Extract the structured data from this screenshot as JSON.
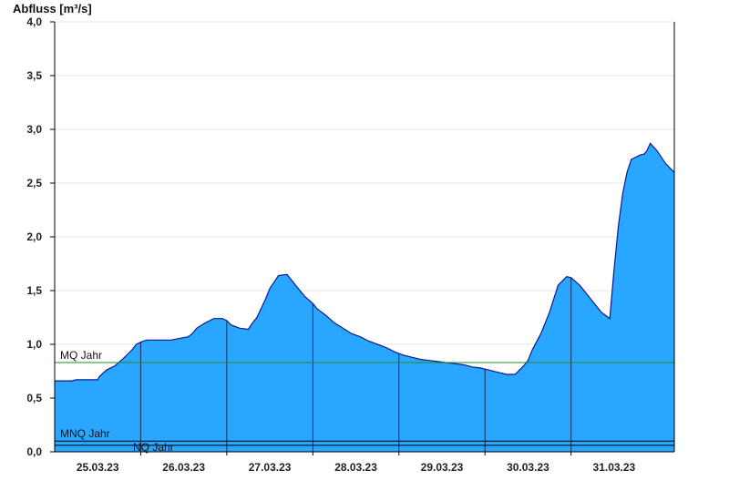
{
  "chart_data": {
    "type": "area",
    "ylabel": "Abfluss [m³/s]",
    "ylim": [
      0,
      4.0
    ],
    "y_ticks": [
      "0,0",
      "0,5",
      "1,0",
      "1,5",
      "2,0",
      "2,5",
      "3,0",
      "3,5",
      "4,0"
    ],
    "x_range": [
      0,
      7.2
    ],
    "x_ticks": [
      {
        "x": 0.5,
        "label": "25.03.23"
      },
      {
        "x": 1.5,
        "label": "26.03.23"
      },
      {
        "x": 2.5,
        "label": "27.03.23"
      },
      {
        "x": 3.5,
        "label": "28.03.23"
      },
      {
        "x": 4.5,
        "label": "29.03.23"
      },
      {
        "x": 5.5,
        "label": "30.03.23"
      },
      {
        "x": 6.5,
        "label": "31.03.23"
      }
    ],
    "day_boundaries": [
      1,
      2,
      3,
      4,
      5,
      6
    ],
    "grid": true,
    "series": [
      {
        "x": [
          0.0,
          0.2,
          0.25,
          0.5,
          0.52,
          0.6,
          0.7,
          0.8,
          0.9,
          0.95,
          1.0,
          1.07,
          1.15,
          1.35,
          1.55,
          1.6,
          1.65,
          1.75,
          1.85,
          1.95,
          2.0,
          2.05,
          2.15,
          2.25,
          2.3,
          2.35,
          2.45,
          2.5,
          2.6,
          2.7,
          2.75,
          2.8,
          2.9,
          3.0,
          3.05,
          3.15,
          3.25,
          3.35,
          3.45,
          3.55,
          3.65,
          3.75,
          3.85,
          3.95,
          4.05,
          4.15,
          4.25,
          4.35,
          4.45,
          4.55,
          4.65,
          4.75,
          4.85,
          4.95,
          5.05,
          5.15,
          5.25,
          5.35,
          5.45,
          5.5,
          5.55,
          5.65,
          5.75,
          5.85,
          5.95,
          6.0,
          6.1,
          6.2,
          6.3,
          6.35,
          6.4,
          6.45,
          6.5,
          6.55,
          6.6,
          6.65,
          6.7,
          6.8,
          6.85,
          6.88,
          6.92,
          7.0,
          7.1,
          7.2
        ],
        "values": [
          0.66,
          0.66,
          0.67,
          0.67,
          0.7,
          0.76,
          0.8,
          0.87,
          0.95,
          1.0,
          1.02,
          1.04,
          1.04,
          1.04,
          1.07,
          1.1,
          1.15,
          1.2,
          1.24,
          1.24,
          1.22,
          1.18,
          1.15,
          1.14,
          1.2,
          1.25,
          1.42,
          1.52,
          1.64,
          1.65,
          1.6,
          1.55,
          1.45,
          1.38,
          1.33,
          1.27,
          1.2,
          1.15,
          1.1,
          1.07,
          1.03,
          1.0,
          0.97,
          0.93,
          0.9,
          0.88,
          0.86,
          0.85,
          0.84,
          0.83,
          0.82,
          0.81,
          0.79,
          0.78,
          0.76,
          0.74,
          0.72,
          0.72,
          0.8,
          0.85,
          0.95,
          1.1,
          1.3,
          1.55,
          1.63,
          1.62,
          1.55,
          1.45,
          1.35,
          1.3,
          1.27,
          1.24,
          1.7,
          2.1,
          2.4,
          2.6,
          2.72,
          2.76,
          2.77,
          2.8,
          2.87,
          2.8,
          2.68,
          2.6
        ]
      }
    ],
    "reference_lines": [
      {
        "label": "MQ Jahr",
        "value": 0.83,
        "color": "#228b22"
      },
      {
        "label": "MNQ Jahr",
        "value": 0.1,
        "color": "#000000"
      },
      {
        "label": "NQ Jahr",
        "value": 0.06,
        "color": "#000000"
      }
    ],
    "colors": {
      "fill": "#29a6ff",
      "stroke": "#0a1a8a",
      "grid": "#e6e6e6"
    }
  }
}
